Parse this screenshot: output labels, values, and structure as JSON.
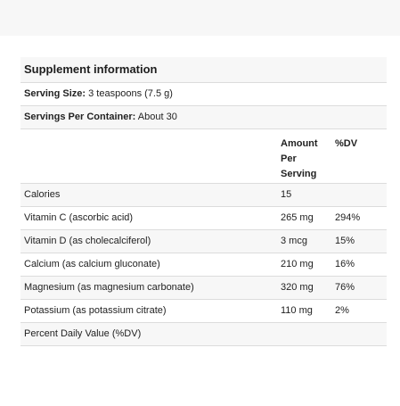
{
  "title": "Supplement information",
  "serving_size": {
    "label": "Serving Size:",
    "value": " 3 teaspoons (7.5 g)"
  },
  "servings_per_container": {
    "label": "Servings Per Container:",
    "value": " About 30"
  },
  "columns": {
    "amount_line1": "Amount",
    "amount_line2": "Per",
    "amount_line3": "Serving",
    "dv": "%DV"
  },
  "rows": [
    {
      "name": "Calories",
      "amount": "15",
      "dv": ""
    },
    {
      "name": "Vitamin C (ascorbic acid)",
      "amount": "265 mg",
      "dv": "294%"
    },
    {
      "name": "Vitamin D (as cholecalciferol)",
      "amount": "3 mcg",
      "dv": "15%"
    },
    {
      "name": "Calcium (as calcium gluconate)",
      "amount": "210 mg",
      "dv": "16%"
    },
    {
      "name": "Magnesium (as magnesium carbonate)",
      "amount": "320 mg",
      "dv": "76%"
    },
    {
      "name": "Potassium (as potassium citrate)",
      "amount": "110 mg",
      "dv": "2%"
    }
  ],
  "footnote": "Percent Daily Value (%DV)"
}
